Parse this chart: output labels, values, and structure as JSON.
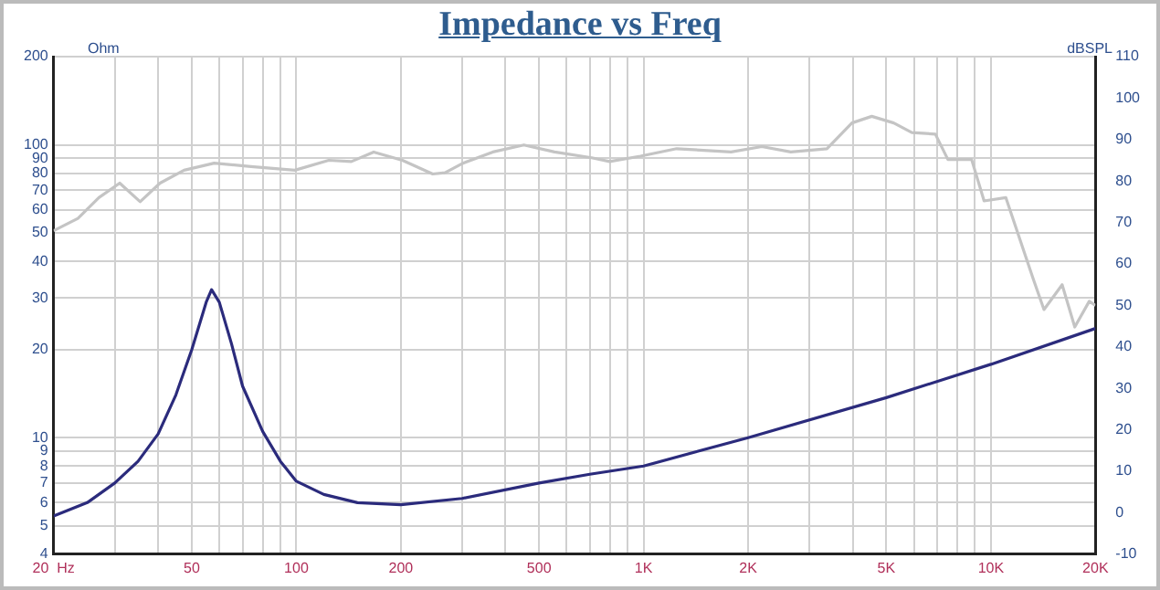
{
  "chart_data": {
    "type": "line",
    "title": "Impedance vs Freq",
    "ylabel": "Ohm",
    "y2label": "dBSPL",
    "log": "xy",
    "grid": true,
    "legend": false,
    "marker": "none",
    "line_style": "solid",
    "xlim": [
      20,
      20000
    ],
    "xticks": [
      {
        "value": 20,
        "label": "20  Hz"
      },
      {
        "value": 30,
        "label": null
      },
      {
        "value": 40,
        "label": null
      },
      50,
      {
        "value": 60,
        "label": null
      },
      {
        "value": 70,
        "label": null
      },
      {
        "value": 80,
        "label": null
      },
      {
        "value": 90,
        "label": null
      },
      100,
      200,
      {
        "value": 300,
        "label": null
      },
      {
        "value": 400,
        "label": null
      },
      500,
      {
        "value": 600,
        "label": null
      },
      {
        "value": 700,
        "label": null
      },
      {
        "value": 800,
        "label": null
      },
      {
        "value": 900,
        "label": null
      },
      {
        "value": 1000,
        "label": "1K"
      },
      {
        "value": 2000,
        "label": "2K"
      },
      {
        "value": 3000,
        "label": null
      },
      {
        "value": 4000,
        "label": null
      },
      {
        "value": 5000,
        "label": "5K"
      },
      {
        "value": 6000,
        "label": null
      },
      {
        "value": 7000,
        "label": null
      },
      {
        "value": 8000,
        "label": null
      },
      {
        "value": 9000,
        "label": null
      },
      {
        "value": 10000,
        "label": "10K"
      },
      {
        "value": 20000,
        "label": "20K"
      }
    ],
    "ylim": [
      4,
      200
    ],
    "yticks": [
      4,
      5,
      6,
      7,
      8,
      9,
      10,
      20,
      30,
      40,
      50,
      60,
      70,
      80,
      90,
      100,
      200
    ],
    "y2lim": [
      -10,
      110
    ],
    "y2ticks": [
      -10,
      0,
      10,
      20,
      30,
      40,
      50,
      60,
      70,
      80,
      90,
      100,
      110
    ],
    "series": [
      {
        "color": "#2b2b7c",
        "x": [
          20,
          25,
          30,
          35,
          40,
          45,
          50,
          55,
          57,
          60,
          65,
          70,
          80,
          90,
          100,
          120,
          150,
          200,
          300,
          500,
          700,
          1000,
          2000,
          5000,
          10000,
          20000
        ],
        "values": [
          5.4,
          6.0,
          7.0,
          8.3,
          10.3,
          14,
          20,
          29,
          32,
          29,
          21,
          15,
          10.5,
          8.3,
          7.1,
          6.4,
          6.0,
          5.9,
          6.2,
          7.0,
          7.5,
          8.0,
          10.0,
          13.7,
          17.8,
          23.6
        ]
      },
      {
        "color": "#c4c4c4",
        "axis": "y2",
        "x": [
          20,
          23.5,
          27,
          31,
          35.5,
          40.5,
          47.5,
          58,
          74,
          99,
          124,
          144,
          167,
          202,
          247,
          268,
          302,
          368,
          452,
          554,
          709,
          798,
          979,
          1245,
          1786,
          2190,
          2654,
          3372,
          3980,
          4540,
          5250,
          5920,
          6920,
          7520,
          8800,
          9560,
          11040,
          13230,
          14220,
          16040,
          17440,
          19200,
          20000
        ],
        "values": [
          68,
          71,
          76,
          79.5,
          75,
          79.5,
          82.6,
          84.3,
          83.5,
          82.6,
          85,
          84.7,
          87,
          85,
          81.7,
          82,
          84.3,
          87,
          88.7,
          87,
          85.6,
          84.7,
          86,
          87.8,
          87,
          88.3,
          87,
          87.8,
          94,
          95.6,
          94,
          91.7,
          91.3,
          85.2,
          85.2,
          75.2,
          76,
          56.5,
          49,
          55,
          44.8,
          51,
          50
        ]
      }
    ]
  }
}
